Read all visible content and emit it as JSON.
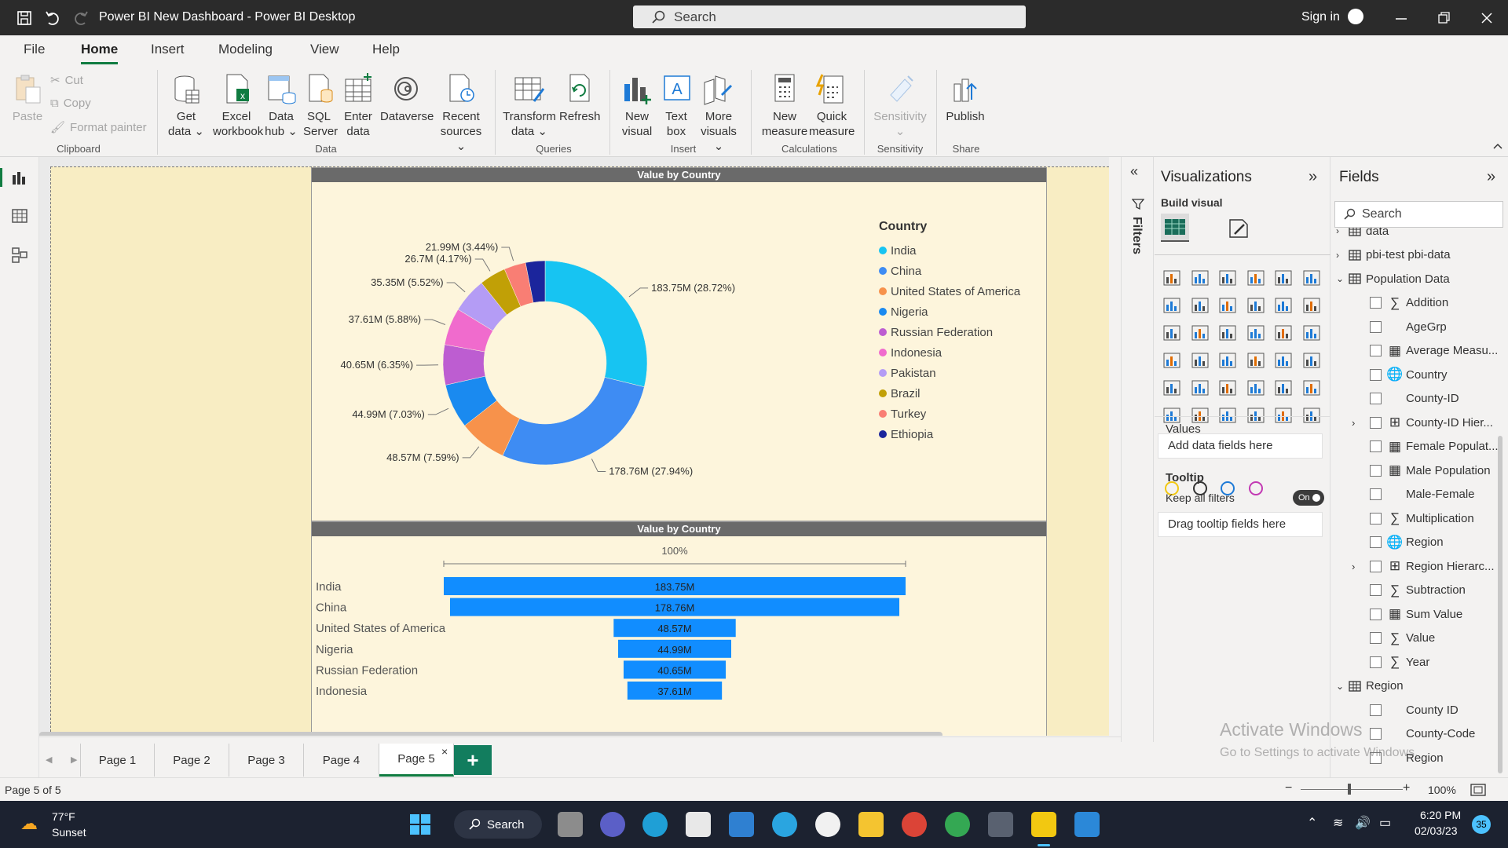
{
  "titlebar": {
    "title": "Power BI New Dashboard - Power BI Desktop",
    "search_placeholder": "Search",
    "signin": "Sign in"
  },
  "menu": [
    "File",
    "Home",
    "Insert",
    "Modeling",
    "View",
    "Help"
  ],
  "ribbon": {
    "clipboard": {
      "paste": "Paste",
      "cut": "Cut",
      "copy": "Copy",
      "format_painter": "Format painter",
      "group": "Clipboard"
    },
    "data": {
      "get_data": [
        "Get",
        "data"
      ],
      "excel": [
        "Excel",
        "workbook"
      ],
      "data_hub": [
        "Data",
        "hub"
      ],
      "sql": [
        "SQL",
        "Server"
      ],
      "enter": [
        "Enter",
        "data"
      ],
      "dataverse": "Dataverse",
      "recent": [
        "Recent",
        "sources"
      ],
      "group": "Data"
    },
    "queries": {
      "transform": [
        "Transform",
        "data"
      ],
      "refresh": "Refresh",
      "group": "Queries"
    },
    "insert": {
      "new_visual": [
        "New",
        "visual"
      ],
      "text_box": [
        "Text",
        "box"
      ],
      "more_visuals": [
        "More",
        "visuals"
      ],
      "group": "Insert"
    },
    "calculations": {
      "new_measure": [
        "New",
        "measure"
      ],
      "quick_measure": [
        "Quick",
        "measure"
      ],
      "group": "Calculations"
    },
    "sensitivity": {
      "label": "Sensitivity",
      "group": "Sensitivity"
    },
    "share": {
      "publish": "Publish",
      "group": "Share"
    }
  },
  "donut_visual": {
    "title": "Value by Country",
    "legend_title": "Country",
    "colors": {
      "India": "#17c4f2",
      "China": "#3e8cf3",
      "United States of America": "#f7924b",
      "Nigeria": "#1a8af0",
      "Russian Federation": "#bd5dd1",
      "Indonesia": "#f06bcd",
      "Pakistan": "#b49cf5",
      "Brazil": "#c1a006",
      "Turkey": "#f97e74",
      "Ethiopia": "#1b259c"
    }
  },
  "funnel_visual": {
    "title": "Value by Country",
    "top_label": "100%"
  },
  "chart_data": [
    {
      "type": "pie",
      "title": "Value by Country",
      "legend_title": "Country",
      "categories": [
        "India",
        "China",
        "United States of America",
        "Nigeria",
        "Russian Federation",
        "Indonesia",
        "Pakistan",
        "Brazil",
        "Turkey",
        "Ethiopia"
      ],
      "values": [
        183.75,
        178.76,
        48.57,
        44.99,
        40.65,
        37.61,
        35.35,
        26.7,
        21.99,
        19.6
      ],
      "labels": [
        "183.75M (28.72%)",
        "178.76M (27.94%)",
        "48.57M (7.59%)",
        "44.99M (7.03%)",
        "40.65M (6.35%)",
        "37.61M (5.88%)",
        "35.35M (5.52%)",
        "26.7M (4.17%)",
        "21.99M (3.44%)",
        ""
      ]
    },
    {
      "type": "bar",
      "title": "Value by Country",
      "categories": [
        "India",
        "China",
        "United States of America",
        "Nigeria",
        "Russian Federation",
        "Indonesia"
      ],
      "values": [
        183.75,
        178.76,
        48.57,
        44.99,
        40.65,
        37.61
      ],
      "labels": [
        "183.75M",
        "178.76M",
        "48.57M",
        "44.99M",
        "40.65M",
        "37.61M"
      ]
    }
  ],
  "pages": {
    "tabs": [
      "Page 1",
      "Page 2",
      "Page 3",
      "Page 4",
      "Page 5"
    ],
    "active": "Page 5"
  },
  "status": {
    "page": "Page 5 of 5",
    "zoom": "100%"
  },
  "filters": {
    "label": "Filters"
  },
  "viz": {
    "title": "Visualizations",
    "build": "Build visual",
    "values_label": "Values",
    "values_well": "Add data fields here",
    "tooltip_label": "Tooltip",
    "keep_filters": "Keep all filters",
    "toggle": "On",
    "tooltip_well": "Drag tooltip fields here"
  },
  "fields": {
    "title": "Fields",
    "search_placeholder": "Search",
    "items": [
      {
        "text": "data",
        "kind": "table-partial"
      },
      {
        "text": "pbi-test pbi-data",
        "kind": "table"
      },
      {
        "text": "Population Data",
        "kind": "table-open"
      },
      {
        "text": "Addition",
        "kind": "sigma"
      },
      {
        "text": "AgeGrp",
        "kind": "plain"
      },
      {
        "text": "Average Measu...",
        "kind": "calc"
      },
      {
        "text": "Country",
        "kind": "globe"
      },
      {
        "text": "County-ID",
        "kind": "plain"
      },
      {
        "text": "County-ID Hier...",
        "kind": "hier"
      },
      {
        "text": "Female Populat...",
        "kind": "calc"
      },
      {
        "text": "Male Population",
        "kind": "calc"
      },
      {
        "text": "Male-Female",
        "kind": "plain"
      },
      {
        "text": "Multiplication",
        "kind": "sigma"
      },
      {
        "text": "Region",
        "kind": "globe"
      },
      {
        "text": "Region Hierarc...",
        "kind": "hier"
      },
      {
        "text": "Subtraction",
        "kind": "sigma"
      },
      {
        "text": "Sum Value",
        "kind": "calc"
      },
      {
        "text": "Value",
        "kind": "sigma"
      },
      {
        "text": "Year",
        "kind": "sigma"
      },
      {
        "text": "Region",
        "kind": "table-open"
      },
      {
        "text": "County ID",
        "kind": "plain"
      },
      {
        "text": "County-Code",
        "kind": "plain"
      },
      {
        "text": "Region",
        "kind": "plain"
      }
    ]
  },
  "watermark": {
    "line1": "Activate Windows",
    "line2": "Go to Settings to activate Windows."
  },
  "taskbar": {
    "temp": "77°F",
    "weather": "Sunset",
    "search": "Search",
    "time": "6:20 PM",
    "date": "02/03/23",
    "badge": "35"
  }
}
